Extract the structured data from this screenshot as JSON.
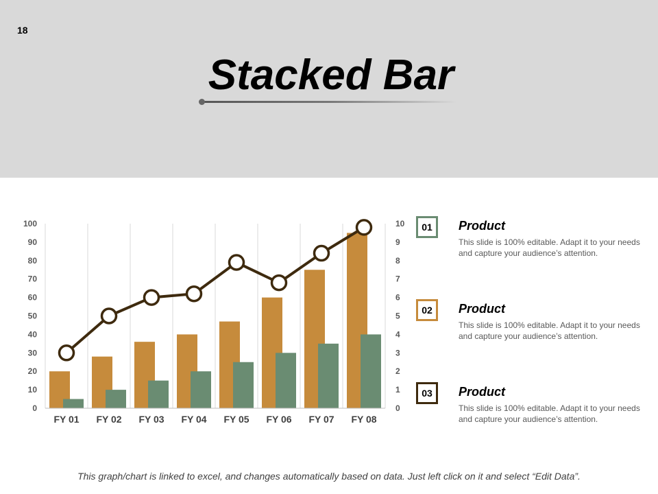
{
  "slide": {
    "number": "18",
    "title": "Stacked Bar",
    "footer": "This graph/chart is linked to excel, and changes automatically based on data. Just left click on it and select “Edit Data”."
  },
  "colors": {
    "series1": "#c68b3c",
    "series2": "#6a8c72",
    "line": "#3e2a0e",
    "header_bg": "#d9d9d9"
  },
  "legend": [
    {
      "number": "01",
      "title": "Product",
      "text": "This slide is 100% editable. Adapt it to your needs and capture your audience’s attention.",
      "border": "#6a8c72"
    },
    {
      "number": "02",
      "title": "Product",
      "text": "This slide is 100% editable. Adapt it to your needs and capture your audience’s attention.",
      "border": "#c68b3c"
    },
    {
      "number": "03",
      "title": "Product",
      "text": "This slide is 100% editable. Adapt it to your needs and capture your audience’s attention.",
      "border": "#3e2a0e"
    }
  ],
  "chart_data": {
    "type": "bar",
    "categories": [
      "FY 01",
      "FY 02",
      "FY 03",
      "FY 04",
      "FY 05",
      "FY 06",
      "FY 07",
      "FY 08"
    ],
    "series": [
      {
        "values": [
          20,
          28,
          36,
          40,
          47,
          60,
          75,
          95
        ],
        "axis": "left",
        "kind": "bar"
      },
      {
        "values": [
          5,
          10,
          15,
          20,
          25,
          30,
          35,
          40
        ],
        "axis": "left",
        "kind": "bar"
      },
      {
        "values": [
          3,
          5,
          6,
          6.2,
          7.9,
          6.8,
          8.4,
          9.8
        ],
        "axis": "right",
        "kind": "line"
      }
    ],
    "ylim": [
      0,
      100
    ],
    "yticks": [
      0,
      10,
      20,
      30,
      40,
      50,
      60,
      70,
      80,
      90,
      100
    ],
    "y2lim": [
      0,
      10
    ],
    "y2ticks": [
      0,
      1,
      2,
      3,
      4,
      5,
      6,
      7,
      8,
      9,
      10
    ],
    "grid": "vertical"
  }
}
